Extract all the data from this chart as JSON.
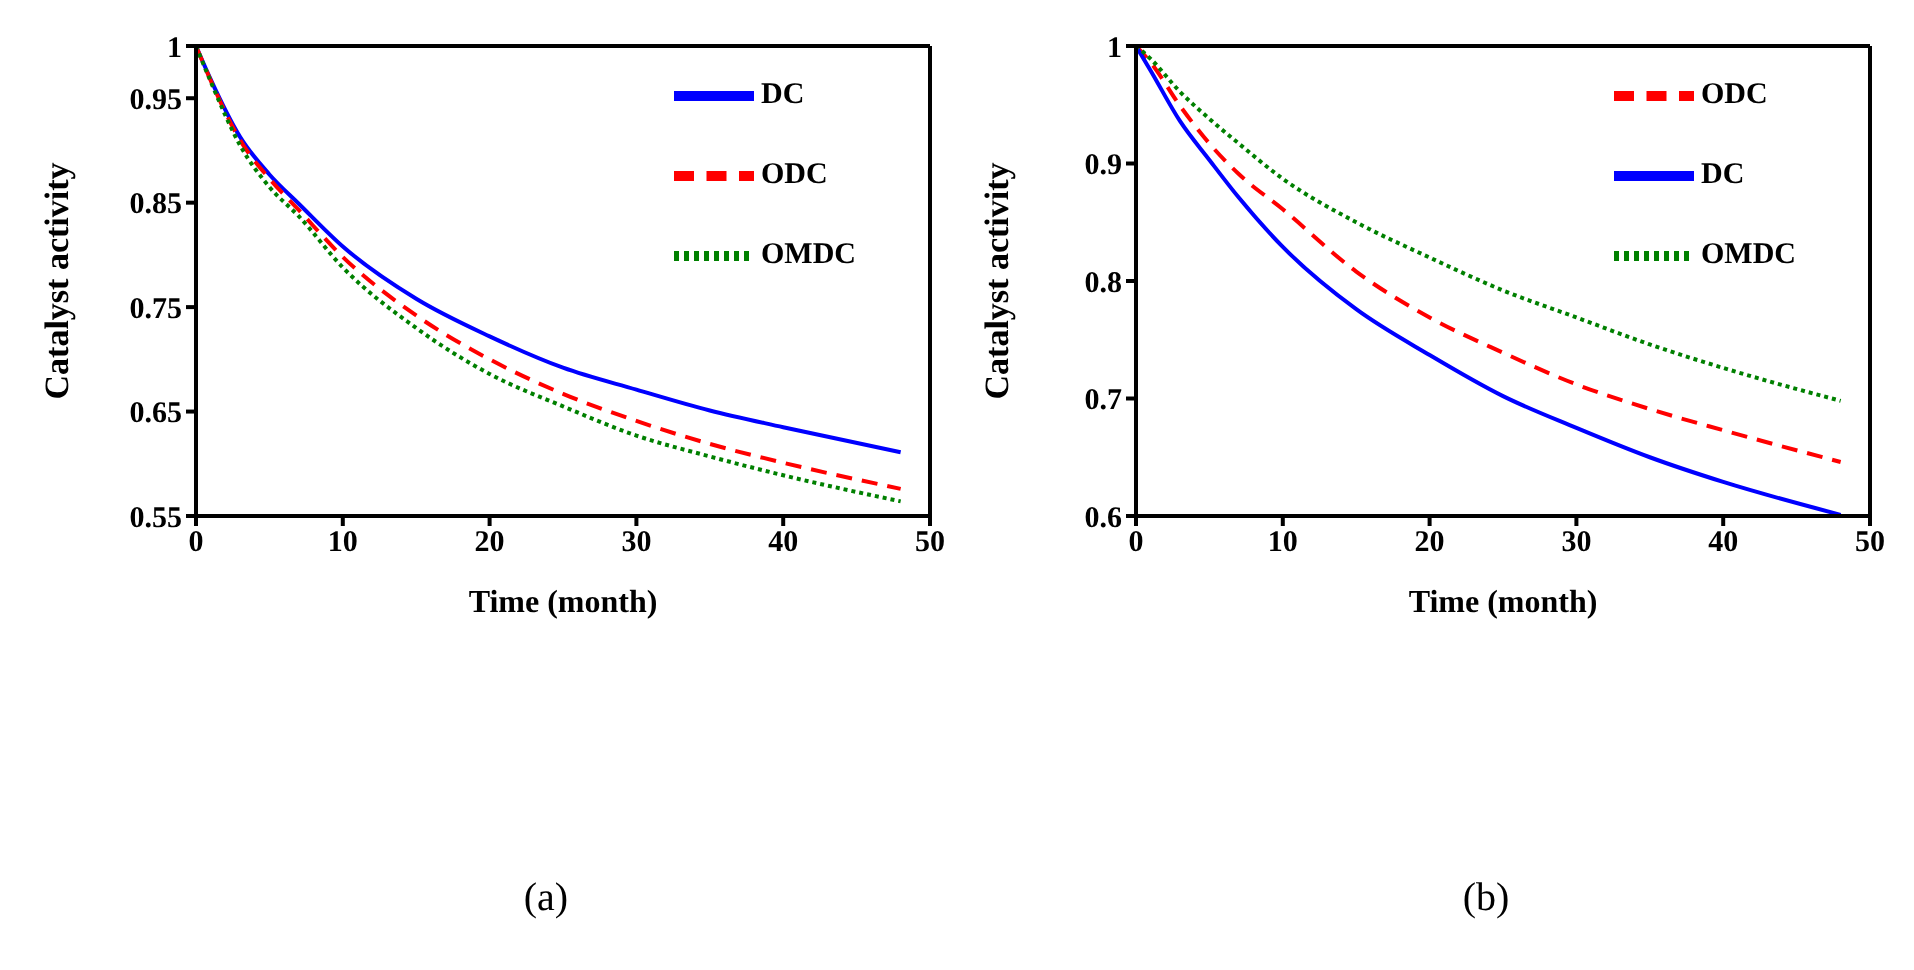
{
  "chart_data": [
    {
      "type": "line",
      "xlabel": "Time (month)",
      "ylabel": "Catalyst activity",
      "annotations": [
        "(a)"
      ],
      "x": [
        0,
        1,
        3,
        5,
        7,
        10,
        15,
        20,
        25,
        30,
        35,
        40,
        48
      ],
      "xlim": [
        0,
        50
      ],
      "xticks": [
        0,
        10,
        20,
        30,
        40,
        50
      ],
      "ylim": [
        0.55,
        1
      ],
      "yticks": [
        0.55,
        0.65,
        0.75,
        0.85,
        0.95,
        1
      ],
      "legend": "top right",
      "grid": false,
      "marker": "none",
      "series": [
        {
          "name": "DC",
          "color": "#0000ff",
          "line_style": "solid",
          "values": [
            1,
            0.968,
            0.913,
            0.877,
            0.849,
            0.808,
            0.758,
            0.722,
            0.692,
            0.671,
            0.651,
            0.635,
            0.611
          ]
        },
        {
          "name": "ODC",
          "color": "#ff0000",
          "line_style": "dashed",
          "values": [
            1,
            0.967,
            0.91,
            0.873,
            0.843,
            0.798,
            0.742,
            0.7,
            0.667,
            0.641,
            0.619,
            0.601,
            0.576
          ]
        },
        {
          "name": "OMDC",
          "color": "#008000",
          "line_style": "dotted",
          "values": [
            1,
            0.966,
            0.905,
            0.865,
            0.837,
            0.788,
            0.73,
            0.686,
            0.655,
            0.627,
            0.607,
            0.589,
            0.564
          ]
        }
      ]
    },
    {
      "type": "line",
      "xlabel": "Time (month)",
      "ylabel": "Catalyst activity",
      "annotations": [
        "(b)"
      ],
      "x": [
        0,
        1,
        3,
        5,
        7,
        10,
        15,
        20,
        25,
        30,
        35,
        40,
        48
      ],
      "xlim": [
        0,
        50
      ],
      "xticks": [
        0,
        10,
        20,
        30,
        40,
        50
      ],
      "ylim": [
        0.6,
        1
      ],
      "yticks": [
        0.6,
        0.7,
        0.8,
        0.9,
        1
      ],
      "legend": "top right",
      "grid": false,
      "marker": "none",
      "series": [
        {
          "name": "ODC",
          "color": "#ff0000",
          "line_style": "dashed",
          "values": [
            1,
            0.986,
            0.949,
            0.917,
            0.891,
            0.861,
            0.808,
            0.769,
            0.739,
            0.712,
            0.691,
            0.673,
            0.646
          ]
        },
        {
          "name": "DC",
          "color": "#0000ff",
          "line_style": "solid",
          "values": [
            1,
            0.979,
            0.936,
            0.903,
            0.871,
            0.829,
            0.776,
            0.737,
            0.702,
            0.675,
            0.65,
            0.629,
            0.601
          ]
        },
        {
          "name": "OMDC",
          "color": "#008000",
          "line_style": "dotted",
          "values": [
            1,
            0.989,
            0.961,
            0.938,
            0.917,
            0.887,
            0.85,
            0.82,
            0.792,
            0.769,
            0.746,
            0.726,
            0.698
          ]
        }
      ]
    }
  ]
}
